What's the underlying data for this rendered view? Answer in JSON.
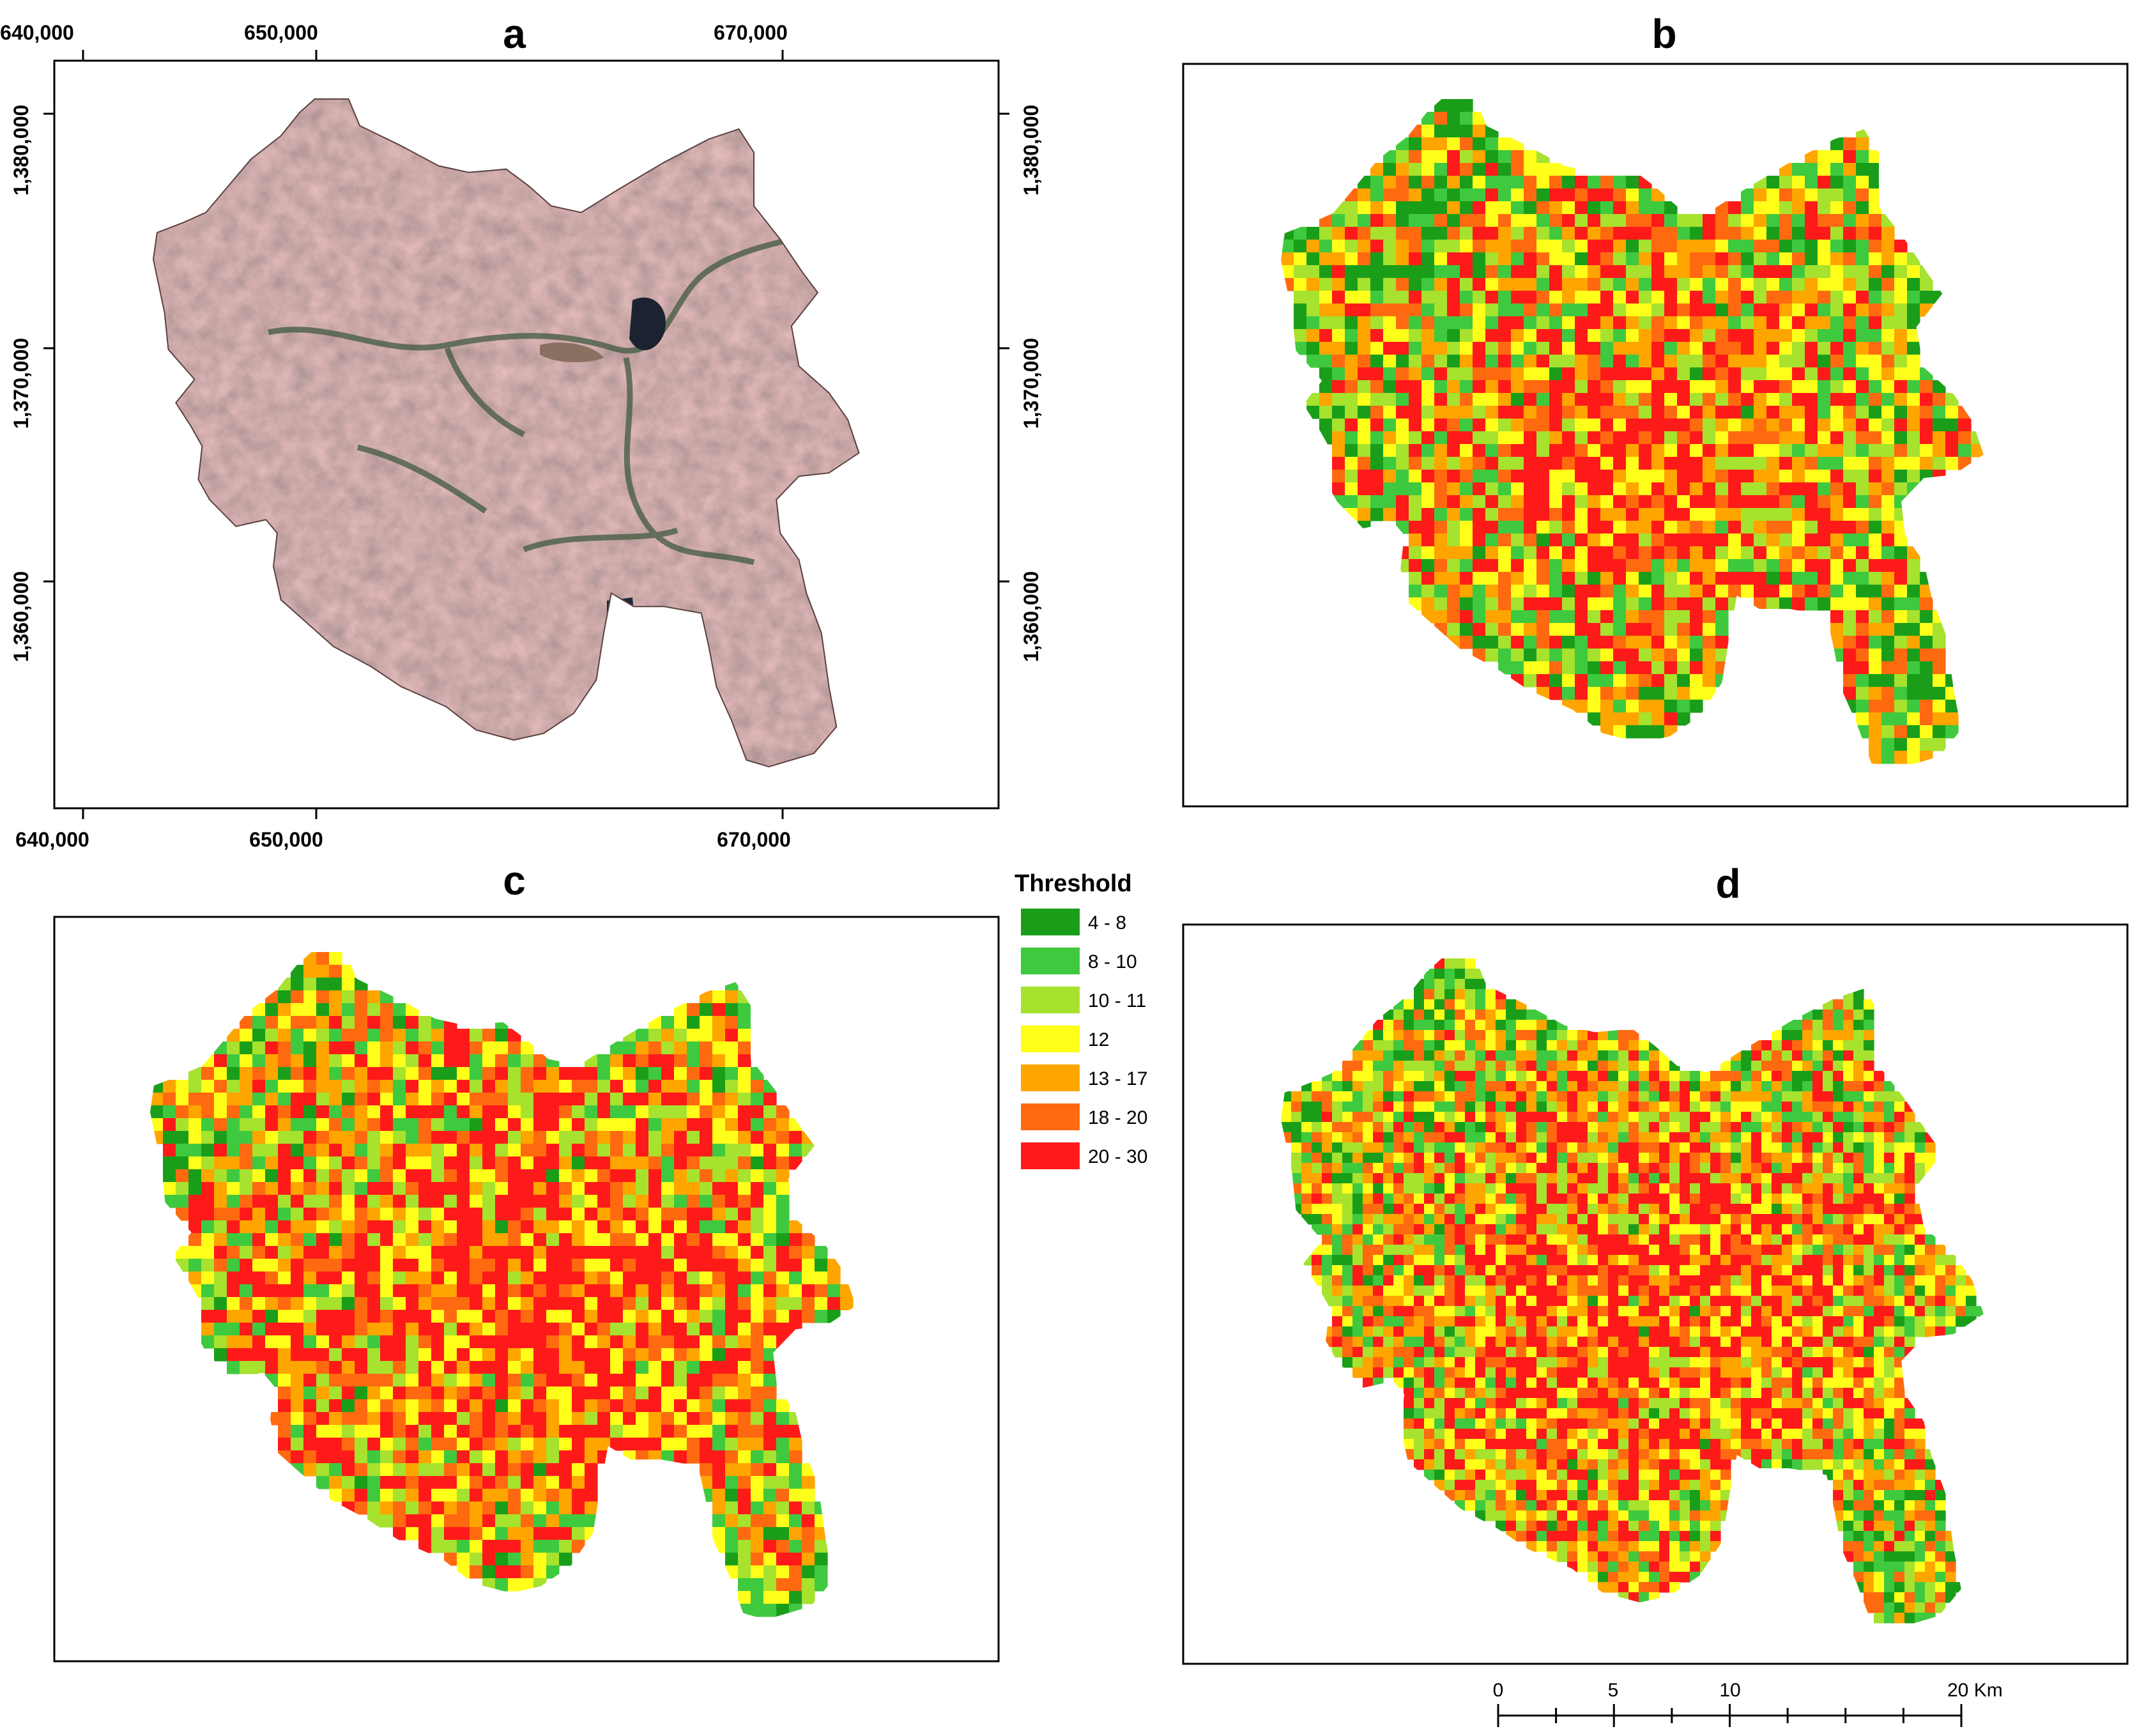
{
  "panels": [
    {
      "id": "a",
      "label": "a",
      "kind": "satellite"
    },
    {
      "id": "b",
      "label": "b",
      "kind": "threshold",
      "pattern": {
        "center": 0.55,
        "spread": 0.32,
        "greenish": 0.55
      }
    },
    {
      "id": "c",
      "label": "c",
      "kind": "threshold",
      "pattern": {
        "center": 0.62,
        "spread": 0.3,
        "greenish": 0.35
      }
    },
    {
      "id": "d",
      "label": "d",
      "kind": "threshold",
      "pattern": {
        "center": 0.58,
        "spread": 0.3,
        "greenish": 0.4
      }
    }
  ],
  "axes": {
    "easting_ticks": [
      "640,000",
      "650,000",
      "670,000"
    ],
    "northing_ticks": [
      "1,380,000",
      "1,370,000",
      "1,360,000"
    ]
  },
  "legend": {
    "title": "Threshold",
    "items": [
      {
        "label": "4 - 8",
        "color": "#1a9e1a"
      },
      {
        "label": "8 - 10",
        "color": "#3fc93f"
      },
      {
        "label": "10 - 11",
        "color": "#a6e22e"
      },
      {
        "label": "12",
        "color": "#ffff1a"
      },
      {
        "label": "13 - 17",
        "color": "#ffa500"
      },
      {
        "label": "18 - 20",
        "color": "#ff6a10"
      },
      {
        "label": "20 - 30",
        "color": "#ff1a1a"
      }
    ]
  },
  "scale_bar": {
    "labels": [
      "0",
      "5",
      "10",
      "20 Km"
    ]
  }
}
